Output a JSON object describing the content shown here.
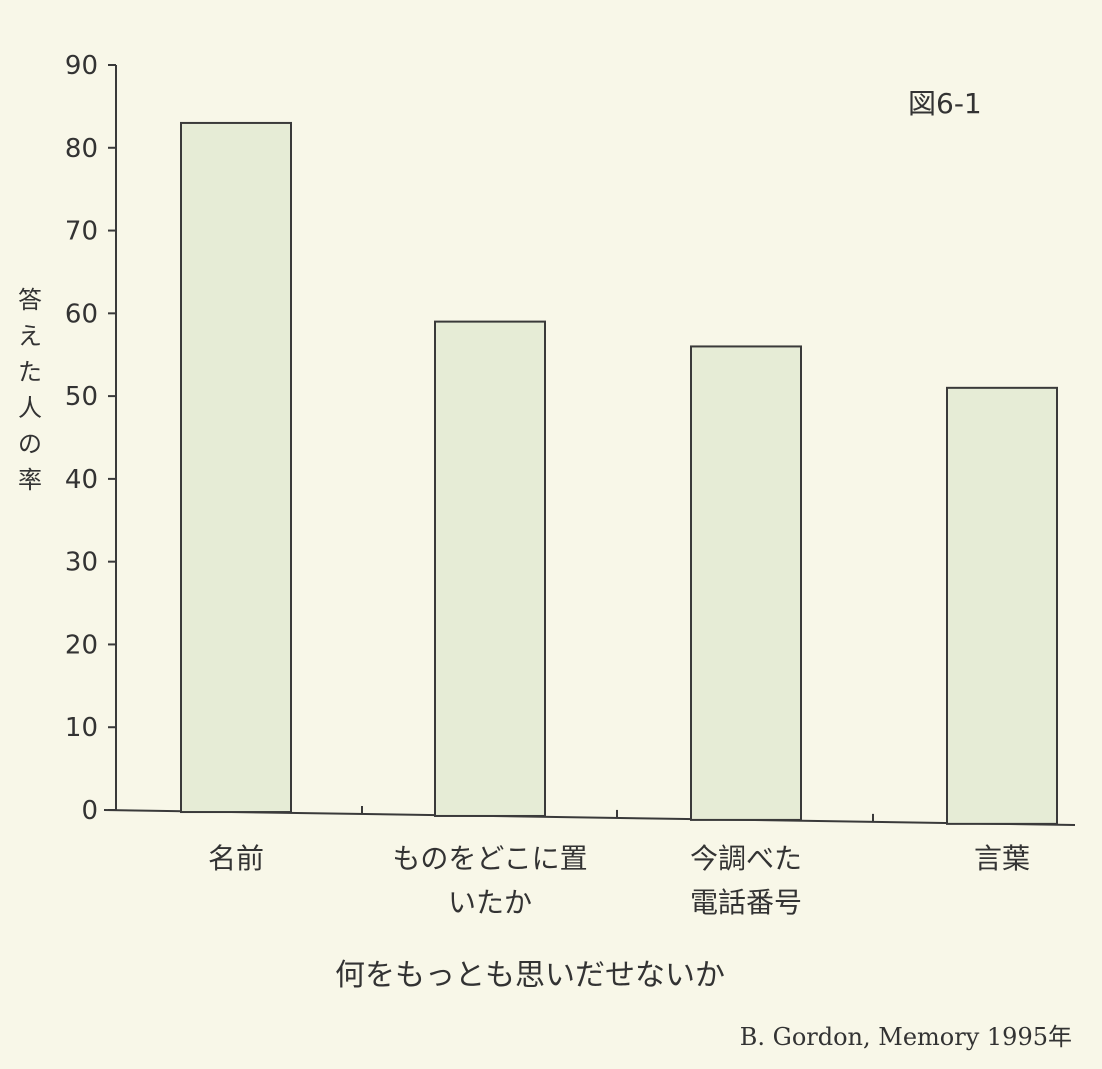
{
  "chart_data": {
    "type": "bar",
    "figure_label": "図6-1",
    "categories": [
      [
        "名前"
      ],
      [
        "ものをどこに置",
        "いたか"
      ],
      [
        "今調べた",
        "電話番号"
      ],
      [
        "言葉"
      ]
    ],
    "values": [
      83,
      59,
      56,
      51
    ],
    "ylabel": "答えた人の率",
    "xlabel": "何をもっとも思いだせないか",
    "ylim": [
      0,
      90
    ],
    "yticks": [
      0,
      10,
      20,
      30,
      40,
      50,
      60,
      70,
      80,
      90
    ],
    "grid": false,
    "source": "B. Gordon, Memory 1995年",
    "colors": {
      "bar_fill": "#e6ecd6",
      "bar_stroke": "#3a3a3a",
      "axis": "#3a3a3a"
    }
  }
}
